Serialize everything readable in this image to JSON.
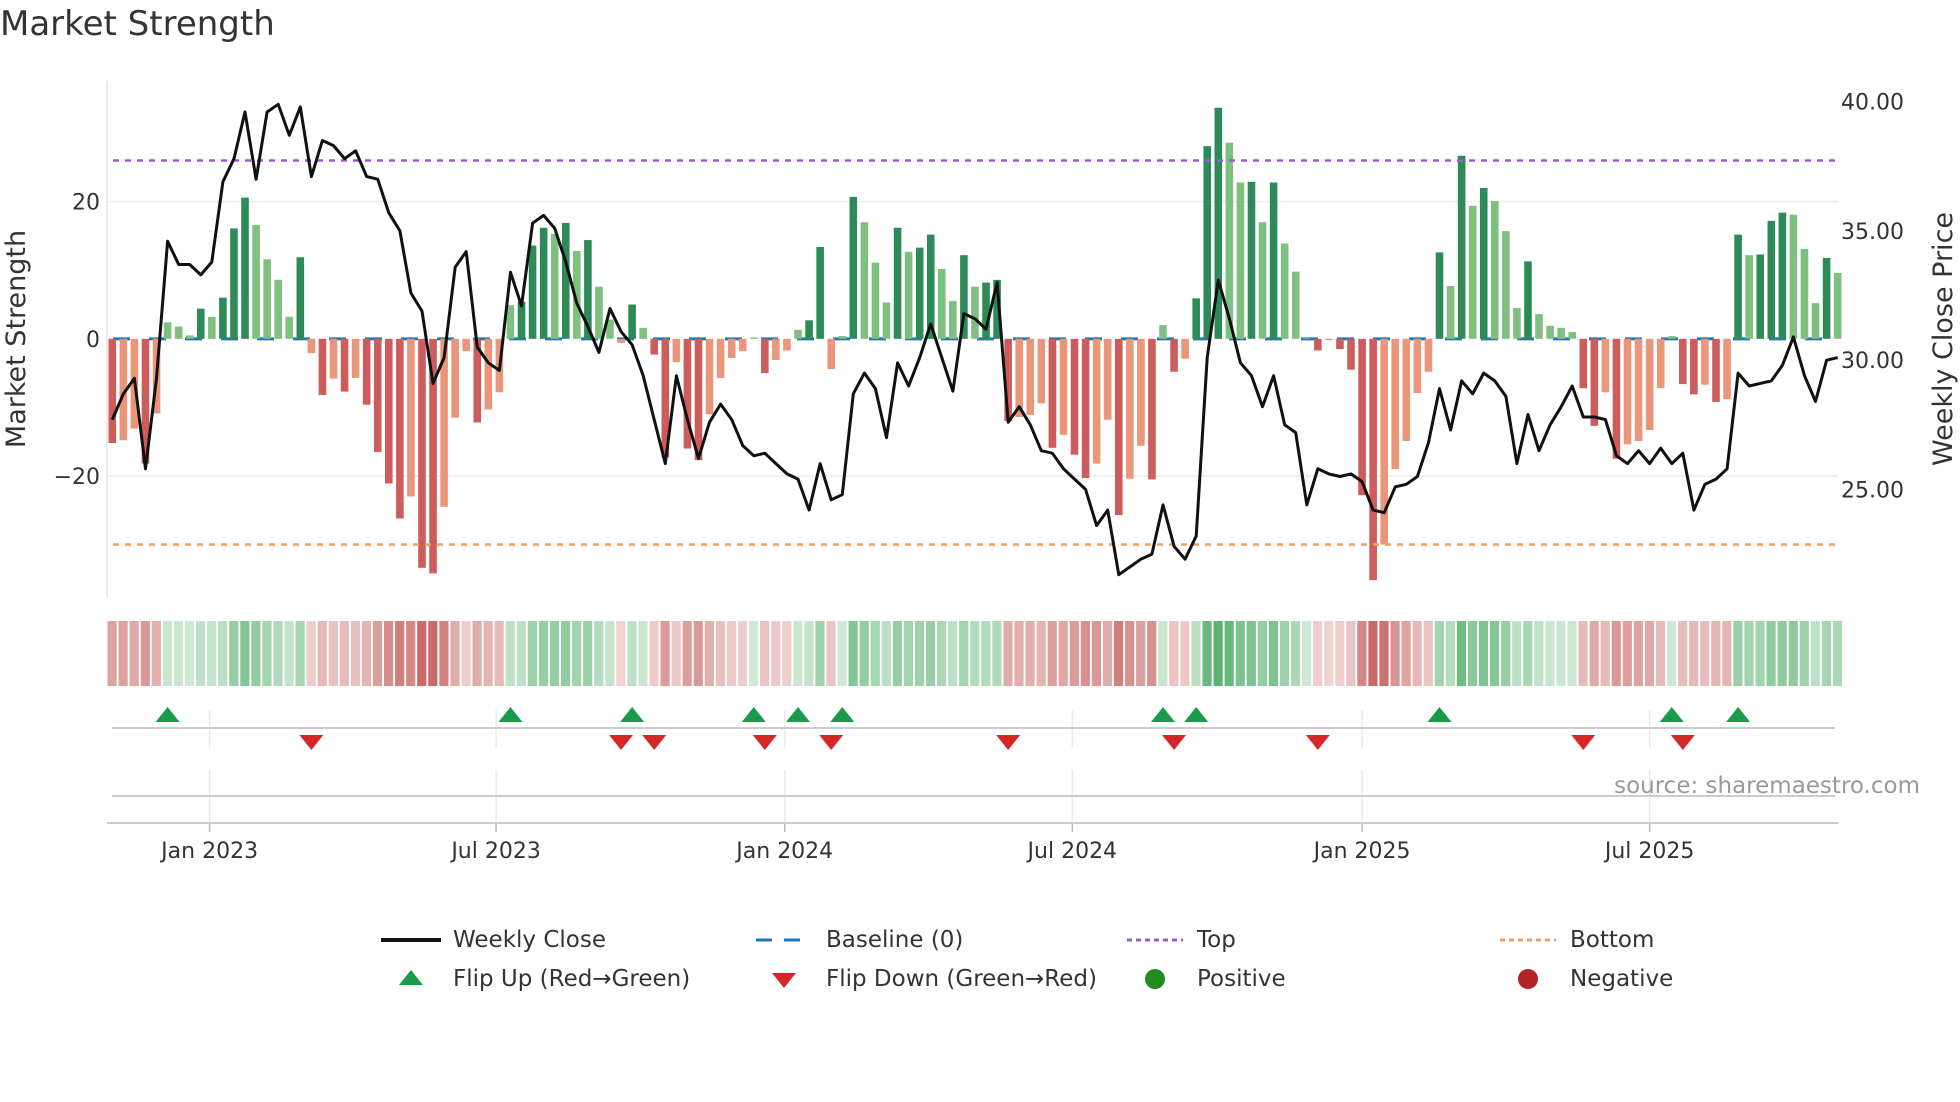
{
  "title": "Market Strength",
  "source": "source: sharemaestro.com",
  "colors": {
    "pos_dark": "#2e8b57",
    "pos_light": "#7fbf7f",
    "neg_dark": "#cd5c5c",
    "neg_light": "#e9967a",
    "line": "#111111",
    "baseline": "#1f77b4",
    "top": "#9b59d6",
    "bottom": "#f0a060",
    "flip_up": "#1a9a4a",
    "flip_down": "#d62728",
    "positive": "#228b22",
    "negative": "#b22222",
    "strip_pos": "#3fa55a",
    "strip_neg": "#c0504d"
  },
  "legend": [
    {
      "label": "Weekly Close",
      "kind": "line"
    },
    {
      "label": "Baseline (0)",
      "kind": "dash"
    },
    {
      "label": "Top",
      "kind": "dot-top"
    },
    {
      "label": "Bottom",
      "kind": "dot-bottom"
    },
    {
      "label": "Flip Up (Red→Green)",
      "kind": "tri-up"
    },
    {
      "label": "Flip Down (Green→Red)",
      "kind": "tri-down"
    },
    {
      "label": "Positive",
      "kind": "dot-pos"
    },
    {
      "label": "Negative",
      "kind": "dot-neg"
    }
  ],
  "chart_data": {
    "type": "bar",
    "title": "Market Strength",
    "ylabel": "Market Strength",
    "y2label": "Weekly Close Price",
    "ylim": [
      -37.8,
      37.6
    ],
    "y2lim": [
      20.8,
      40.8
    ],
    "yticks": [
      {
        "v": 20,
        "label": "20"
      },
      {
        "v": 0,
        "label": "0"
      },
      {
        "v": -20,
        "label": "−20"
      }
    ],
    "y2ticks": [
      {
        "v": 40,
        "label": "40.00"
      },
      {
        "v": 35,
        "label": "35.00"
      },
      {
        "v": 30,
        "label": "30.00"
      },
      {
        "v": 25,
        "label": "25.00"
      }
    ],
    "x_unit": "week index",
    "xticks": [
      {
        "week": 8.8,
        "label": "Jan 2023"
      },
      {
        "week": 34.7,
        "label": "Jul 2023"
      },
      {
        "week": 60.8,
        "label": "Jan 2024"
      },
      {
        "week": 86.8,
        "label": "Jul 2024"
      },
      {
        "week": 113.0,
        "label": "Jan 2025"
      },
      {
        "week": 139.0,
        "label": "Jul 2025"
      }
    ],
    "top_threshold": 26,
    "bottom_threshold": -30,
    "baseline": 0,
    "strength": [
      -15.2,
      -14.8,
      -13.1,
      -18.2,
      -10.9,
      2.4,
      1.8,
      0.5,
      4.4,
      3.2,
      6.0,
      16.1,
      20.6,
      16.6,
      11.6,
      8.6,
      3.2,
      11.9,
      -2.1,
      -8.2,
      -5.8,
      -7.7,
      -5.7,
      -9.6,
      -16.5,
      -21.1,
      -26.2,
      -23.0,
      -33.4,
      -34.2,
      -24.5,
      -11.5,
      -1.8,
      -12.2,
      -10.3,
      -7.8,
      4.9,
      5.4,
      13.6,
      16.2,
      15.3,
      16.9,
      12.8,
      14.4,
      7.6,
      2.8,
      -0.6,
      5.0,
      1.6,
      -2.3,
      -17.3,
      -3.4,
      -16.0,
      -17.7,
      -11.0,
      -5.7,
      -2.8,
      -1.8,
      0.2,
      -5.0,
      -3.1,
      -1.7,
      1.3,
      2.7,
      13.4,
      -4.4,
      0.4,
      20.7,
      17.0,
      11.1,
      5.3,
      16.2,
      12.7,
      13.3,
      15.2,
      10.2,
      5.5,
      12.2,
      7.6,
      8.2,
      8.6,
      -12.0,
      -11.4,
      -11.1,
      -9.4,
      -15.9,
      -14.0,
      -16.9,
      -20.3,
      -18.2,
      -11.8,
      -25.7,
      -20.4,
      -15.6,
      -20.5,
      2.0,
      -4.8,
      -2.9,
      5.9,
      28.1,
      33.7,
      28.6,
      22.8,
      22.9,
      17.0,
      22.8,
      13.9,
      9.8,
      0.1,
      -1.7,
      -0.2,
      -1.5,
      -4.5,
      -22.8,
      -35.2,
      -30.0,
      -19.0,
      -14.9,
      -7.9,
      -4.8,
      12.6,
      7.7,
      26.7,
      19.4,
      22.0,
      20.1,
      15.7,
      4.5,
      11.3,
      3.6,
      1.9,
      1.6,
      1.0,
      -7.2,
      -12.7,
      -7.8,
      -17.5,
      -15.4,
      -14.9,
      -13.3,
      -7.2,
      0.4,
      -6.6,
      -8.1,
      -6.7,
      -9.2,
      -8.8,
      15.2,
      12.2,
      12.3,
      17.2,
      18.4,
      18.1,
      13.1,
      5.2,
      11.8,
      9.6
    ],
    "weekly_close": [
      27.7,
      28.7,
      29.3,
      25.8,
      29.3,
      34.6,
      33.7,
      33.7,
      33.3,
      33.8,
      36.9,
      37.8,
      39.6,
      37.0,
      39.6,
      39.9,
      38.7,
      39.8,
      37.1,
      38.5,
      38.3,
      37.8,
      38.1,
      37.1,
      37.0,
      35.7,
      35.0,
      32.6,
      31.9,
      29.1,
      30.1,
      33.6,
      34.2,
      30.5,
      29.9,
      29.6,
      33.4,
      32.1,
      35.3,
      35.6,
      35.1,
      33.8,
      32.2,
      31.3,
      30.3,
      32.0,
      31.1,
      30.6,
      29.4,
      27.7,
      26.0,
      29.4,
      27.7,
      26.2,
      27.6,
      28.3,
      27.7,
      26.7,
      26.3,
      26.4,
      26.0,
      25.6,
      25.4,
      24.2,
      26.0,
      24.6,
      24.8,
      28.7,
      29.5,
      28.9,
      27.0,
      29.9,
      29.0,
      30.1,
      31.4,
      30.1,
      28.8,
      31.8,
      31.6,
      31.2,
      33.0,
      27.6,
      28.2,
      27.5,
      26.5,
      26.4,
      25.8,
      25.4,
      25.0,
      23.6,
      24.2,
      21.7,
      22.0,
      22.3,
      22.5,
      24.4,
      22.8,
      22.3,
      23.2,
      30.1,
      33.1,
      31.6,
      29.9,
      29.4,
      28.2,
      29.4,
      27.5,
      27.2,
      24.4,
      25.8,
      25.6,
      25.5,
      25.6,
      25.3,
      24.2,
      24.1,
      25.1,
      25.2,
      25.5,
      26.8,
      28.9,
      27.3,
      29.2,
      28.7,
      29.5,
      29.2,
      28.6,
      26.0,
      27.9,
      26.5,
      27.5,
      28.2,
      29.0,
      27.8,
      27.8,
      27.7,
      26.3,
      26.0,
      26.5,
      26.0,
      26.6,
      26.0,
      26.4,
      24.2,
      25.2,
      25.4,
      25.8,
      29.5,
      29.0,
      29.1,
      29.2,
      29.8,
      30.9,
      29.4,
      28.4,
      30.0,
      30.1
    ],
    "grid": true,
    "legend_position": "bottom"
  }
}
